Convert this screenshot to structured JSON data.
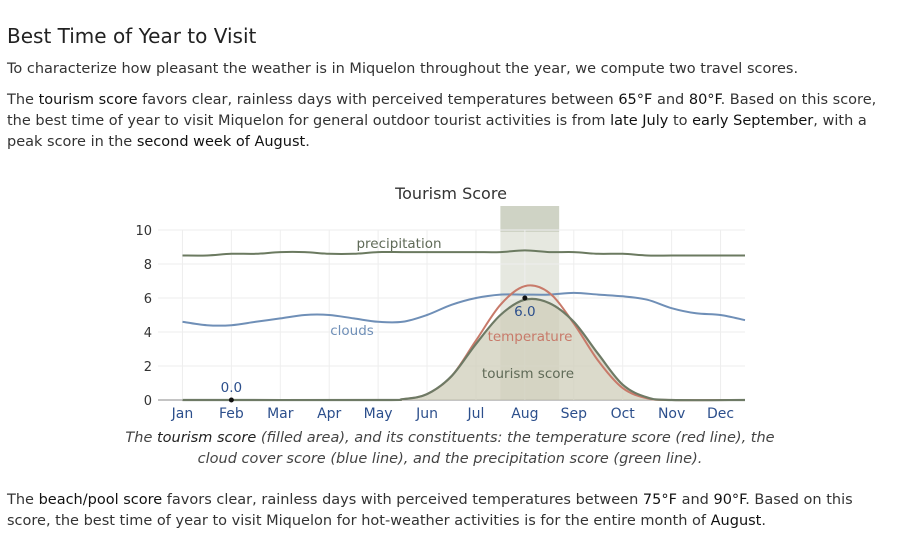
{
  "heading": "Best Time of Year to Visit",
  "intro": "To characterize how pleasant the weather is in Miquelon throughout the year, we compute two travel scores.",
  "tourism_paragraph": {
    "t1": "The ",
    "b1": "tourism score",
    "t2": " favors clear, rainless days with perceived temperatures between ",
    "b2": "65°F",
    "t3": " and ",
    "b3": "80°F",
    "t4": ". Based on this score, the best time of year to visit Miquelon for general outdoor tourist activities is from ",
    "b4": "late July",
    "t5": " to ",
    "b5": "early September",
    "t6": ", with a peak score in the ",
    "b6": "second week of August",
    "t7": "."
  },
  "caption": {
    "t1": "The ",
    "b1": "tourism score",
    "t2": " (filled area), and its constituents: the temperature score (red line), the cloud cover score (blue line), and the precipitation score (green line)."
  },
  "beach_paragraph": {
    "t1": "The ",
    "b1": "beach/pool score",
    "t2": " favors clear, rainless days with perceived temperatures between ",
    "b2": "75°F",
    "t3": " and ",
    "b3": "90°F",
    "t4": ". Based on this score, the best time of year to visit Miquelon for hot-weather activities is for the entire month of ",
    "b4": "August",
    "t5": "."
  },
  "chart_data": {
    "type": "area",
    "title": "Tourism Score",
    "xlabel": "",
    "ylabel": "",
    "ylim": [
      0,
      10
    ],
    "yticks": [
      0,
      2,
      4,
      6,
      8,
      10
    ],
    "months": [
      "Jan",
      "Feb",
      "Mar",
      "Apr",
      "May",
      "Jun",
      "Jul",
      "Aug",
      "Sep",
      "Oct",
      "Nov",
      "Dec"
    ],
    "x_unit": "month",
    "grid": true,
    "highlight_range": [
      7.5,
      8.7
    ],
    "series": [
      {
        "name": "precipitation",
        "role": "line",
        "color": "#6b7a60",
        "x": [
          1,
          1.5,
          2,
          2.5,
          3,
          3.5,
          4,
          4.5,
          5,
          5.5,
          6,
          6.5,
          7,
          7.5,
          8,
          8.5,
          9,
          9.5,
          10,
          10.5,
          11,
          11.5,
          12,
          12.5
        ],
        "values": [
          8.5,
          8.5,
          8.6,
          8.6,
          8.7,
          8.7,
          8.6,
          8.6,
          8.7,
          8.7,
          8.7,
          8.7,
          8.7,
          8.7,
          8.8,
          8.7,
          8.7,
          8.6,
          8.6,
          8.5,
          8.5,
          8.5,
          8.5,
          8.5
        ]
      },
      {
        "name": "clouds",
        "role": "line",
        "color": "#6f8fb7",
        "x": [
          1,
          1.5,
          2,
          2.5,
          3,
          3.5,
          4,
          4.5,
          5,
          5.5,
          6,
          6.5,
          7,
          7.5,
          8,
          8.5,
          9,
          9.5,
          10,
          10.5,
          11,
          11.5,
          12,
          12.5
        ],
        "values": [
          4.6,
          4.4,
          4.4,
          4.6,
          4.8,
          5.0,
          5.0,
          4.8,
          4.6,
          4.6,
          5.0,
          5.6,
          6.0,
          6.2,
          6.2,
          6.2,
          6.3,
          6.2,
          6.1,
          5.9,
          5.4,
          5.1,
          5.0,
          4.7
        ]
      },
      {
        "name": "temperature",
        "role": "line",
        "color": "#c87a6a",
        "x": [
          1,
          5,
          5.5,
          6,
          6.5,
          7,
          7.5,
          8,
          8.5,
          9,
          9.5,
          10,
          10.5,
          11,
          12.5
        ],
        "values": [
          0,
          0,
          0.05,
          0.35,
          1.4,
          3.5,
          5.6,
          6.7,
          6.3,
          4.5,
          2.3,
          0.7,
          0.1,
          0,
          0
        ]
      },
      {
        "name": "tourism score",
        "role": "area",
        "color": "#6e7a65",
        "x": [
          1,
          5,
          5.5,
          6,
          6.5,
          7,
          7.5,
          8,
          8.5,
          9,
          9.5,
          10,
          10.5,
          11,
          12.5
        ],
        "values": [
          0,
          0,
          0.05,
          0.35,
          1.4,
          3.3,
          5.0,
          5.9,
          5.7,
          4.6,
          2.7,
          0.9,
          0.15,
          0,
          0
        ]
      }
    ],
    "annotations": [
      {
        "label": "0.0",
        "x": 2,
        "y": 0
      },
      {
        "label": "6.0",
        "x": 8,
        "y": 6.0
      }
    ]
  }
}
